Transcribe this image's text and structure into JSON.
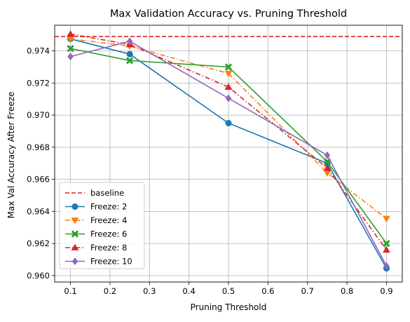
{
  "chart_data": {
    "type": "line",
    "title": "Max Validation Accuracy vs. Pruning Threshold",
    "xlabel": "Pruning Threshold",
    "ylabel": "Max Val Accuracy After Freeze",
    "x": [
      0.1,
      0.25,
      0.5,
      0.75,
      0.9
    ],
    "xlim": [
      0.06,
      0.94
    ],
    "ylim": [
      0.9596,
      0.9756
    ],
    "xticks": [
      0.1,
      0.2,
      0.3,
      0.4,
      0.5,
      0.6,
      0.7,
      0.8,
      0.9
    ],
    "xtick_labels": [
      "0.1",
      "0.2",
      "0.3",
      "0.4",
      "0.5",
      "0.6",
      "0.7",
      "0.8",
      "0.9"
    ],
    "yticks": [
      0.96,
      0.962,
      0.964,
      0.966,
      0.968,
      0.97,
      0.972,
      0.974
    ],
    "ytick_labels": [
      "0.960",
      "0.962",
      "0.964",
      "0.966",
      "0.968",
      "0.970",
      "0.972",
      "0.974"
    ],
    "grid": true,
    "legend_position": "lower-left",
    "baseline": {
      "name": "baseline",
      "value": 0.9749,
      "color": "#d62728",
      "dash": "dashed"
    },
    "series": [
      {
        "name": "Freeze: 2",
        "values": [
          0.97475,
          0.9738,
          0.9695,
          0.967,
          0.96045
        ],
        "color": "#1f77b4",
        "marker": "circle",
        "dash": "solid"
      },
      {
        "name": "Freeze: 4",
        "values": [
          0.97475,
          0.9743,
          0.9726,
          0.9664,
          0.96355
        ],
        "color": "#ff7f0e",
        "marker": "triangle-down",
        "dash": "dashdot"
      },
      {
        "name": "Freeze: 6",
        "values": [
          0.97415,
          0.9734,
          0.973,
          0.9671,
          0.962
        ],
        "color": "#2ca02c",
        "marker": "x-filled",
        "dash": "solid"
      },
      {
        "name": "Freeze: 8",
        "values": [
          0.97505,
          0.9744,
          0.97175,
          0.9667,
          0.9616
        ],
        "color": "#d62728",
        "marker": "triangle-up",
        "dash": "dashdot"
      },
      {
        "name": "Freeze: 10",
        "values": [
          0.97365,
          0.9746,
          0.97105,
          0.9675,
          0.9606
        ],
        "color": "#9467bd",
        "marker": "diamond",
        "dash": "solid"
      }
    ]
  }
}
